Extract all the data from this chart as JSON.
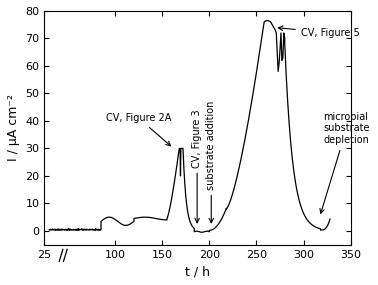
{
  "title": "",
  "xlabel": "t / h",
  "ylabel": "I / μA cm⁻²",
  "xlim": [
    25,
    350
  ],
  "ylim": [
    -5,
    80
  ],
  "xticks": [
    25,
    100,
    150,
    200,
    250,
    300,
    350
  ],
  "yticks": [
    0,
    10,
    20,
    30,
    40,
    50,
    60,
    70,
    80
  ],
  "background_color": "#ffffff",
  "line_color": "#000000"
}
